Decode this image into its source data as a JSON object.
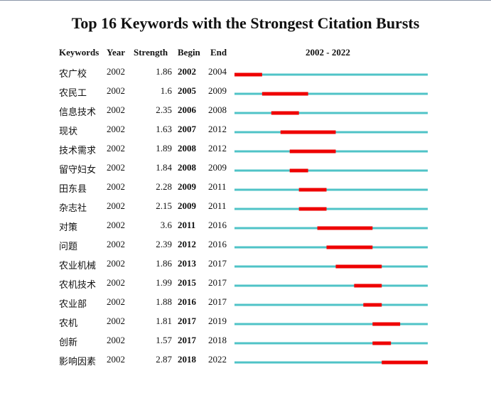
{
  "title": "Top 16 Keywords with the Strongest Citation Bursts",
  "headers": {
    "keywords": "Keywords",
    "year": "Year",
    "strength": "Strength",
    "begin": "Begin",
    "end": "End",
    "range": "2002 - 2022"
  },
  "colors": {
    "timeline": "#4fc3c7",
    "burst": "#ee0000"
  },
  "chart_data": {
    "type": "table",
    "title": "Top 16 Keywords with the Strongest Citation Bursts",
    "year_range": [
      2002,
      2022
    ],
    "rows": [
      {
        "keyword": "农广校",
        "year": "2002",
        "strength": "1.86",
        "begin": "2002",
        "end": "2004"
      },
      {
        "keyword": "农民工",
        "year": "2002",
        "strength": "1.6",
        "begin": "2005",
        "end": "2009"
      },
      {
        "keyword": "信息技术",
        "year": "2002",
        "strength": "2.35",
        "begin": "2006",
        "end": "2008"
      },
      {
        "keyword": "现状",
        "year": "2002",
        "strength": "1.63",
        "begin": "2007",
        "end": "2012"
      },
      {
        "keyword": "技术需求",
        "year": "2002",
        "strength": "1.89",
        "begin": "2008",
        "end": "2012"
      },
      {
        "keyword": "留守妇女",
        "year": "2002",
        "strength": "1.84",
        "begin": "2008",
        "end": "2009"
      },
      {
        "keyword": "田东县",
        "year": "2002",
        "strength": "2.28",
        "begin": "2009",
        "end": "2011"
      },
      {
        "keyword": "杂志社",
        "year": "2002",
        "strength": "2.15",
        "begin": "2009",
        "end": "2011"
      },
      {
        "keyword": "对策",
        "year": "2002",
        "strength": "3.6",
        "begin": "2011",
        "end": "2016"
      },
      {
        "keyword": "问题",
        "year": "2002",
        "strength": "2.39",
        "begin": "2012",
        "end": "2016"
      },
      {
        "keyword": "农业机械",
        "year": "2002",
        "strength": "1.86",
        "begin": "2013",
        "end": "2017"
      },
      {
        "keyword": "农机技术",
        "year": "2002",
        "strength": "1.99",
        "begin": "2015",
        "end": "2017"
      },
      {
        "keyword": "农业部",
        "year": "2002",
        "strength": "1.88",
        "begin": "2016",
        "end": "2017"
      },
      {
        "keyword": "农机",
        "year": "2002",
        "strength": "1.81",
        "begin": "2017",
        "end": "2019"
      },
      {
        "keyword": "创新",
        "year": "2002",
        "strength": "1.57",
        "begin": "2017",
        "end": "2018"
      },
      {
        "keyword": "影响因素",
        "year": "2002",
        "strength": "2.87",
        "begin": "2018",
        "end": "2022"
      }
    ]
  }
}
